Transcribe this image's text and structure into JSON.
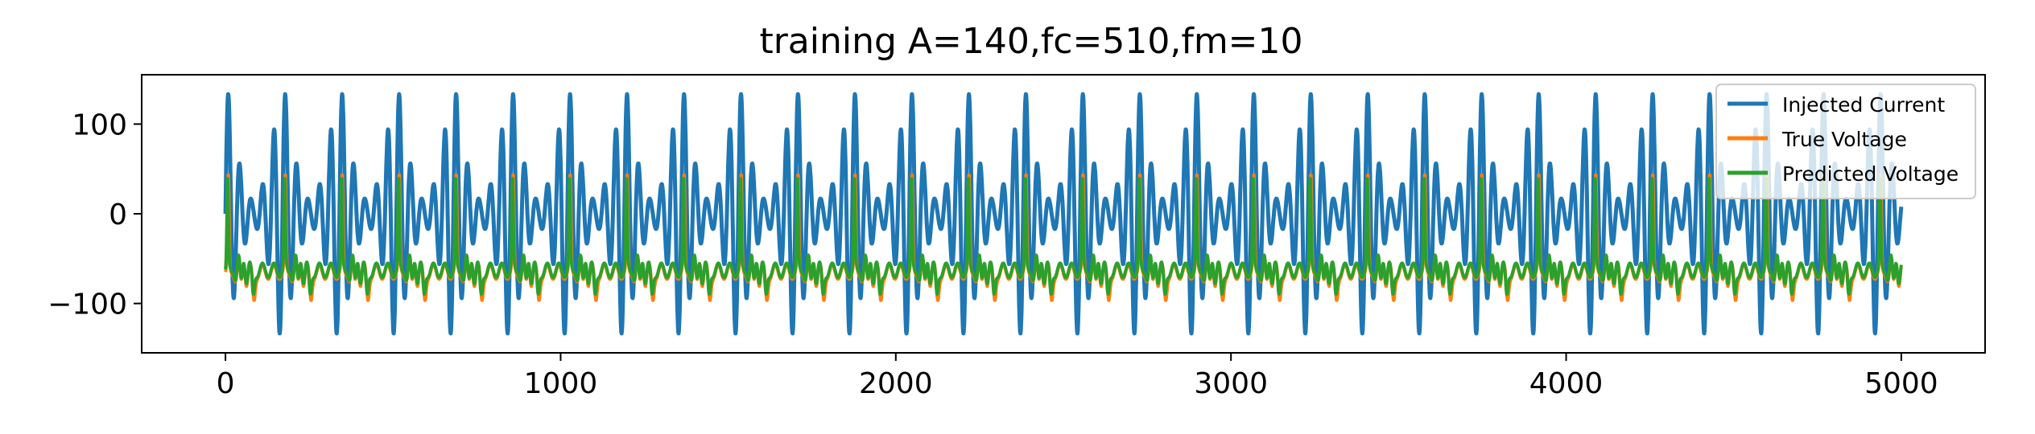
{
  "chart_data": {
    "type": "line",
    "title": "training A=140,fc=510,fm=10",
    "xlabel": "",
    "ylabel": "",
    "xlim": [
      -250,
      5250
    ],
    "ylim": [
      -155,
      155
    ],
    "xticks": [
      0,
      1000,
      2000,
      3000,
      4000,
      5000
    ],
    "xtick_labels": [
      "0",
      "1000",
      "2000",
      "3000",
      "4000",
      "5000"
    ],
    "yticks": [
      100,
      0,
      -100
    ],
    "ytick_labels": [
      "100",
      "0",
      "−100"
    ],
    "grid": false,
    "legend_position": "top-right",
    "sample_count": 5000,
    "series": [
      {
        "name": "Injected Current",
        "color": "#1f77b4",
        "description_values": {
          "amplitude": 140,
          "carrier_period_samples": 34,
          "envelope_period_samples": 170
        }
      },
      {
        "name": "True Voltage",
        "color": "#ff7f0e",
        "description_values": {
          "baseline": -65,
          "peak": 38,
          "trough": -100
        }
      },
      {
        "name": "Predicted Voltage",
        "color": "#2ca02c",
        "description_values": {
          "baseline": -63,
          "peak": 34,
          "trough": -95
        }
      }
    ]
  }
}
